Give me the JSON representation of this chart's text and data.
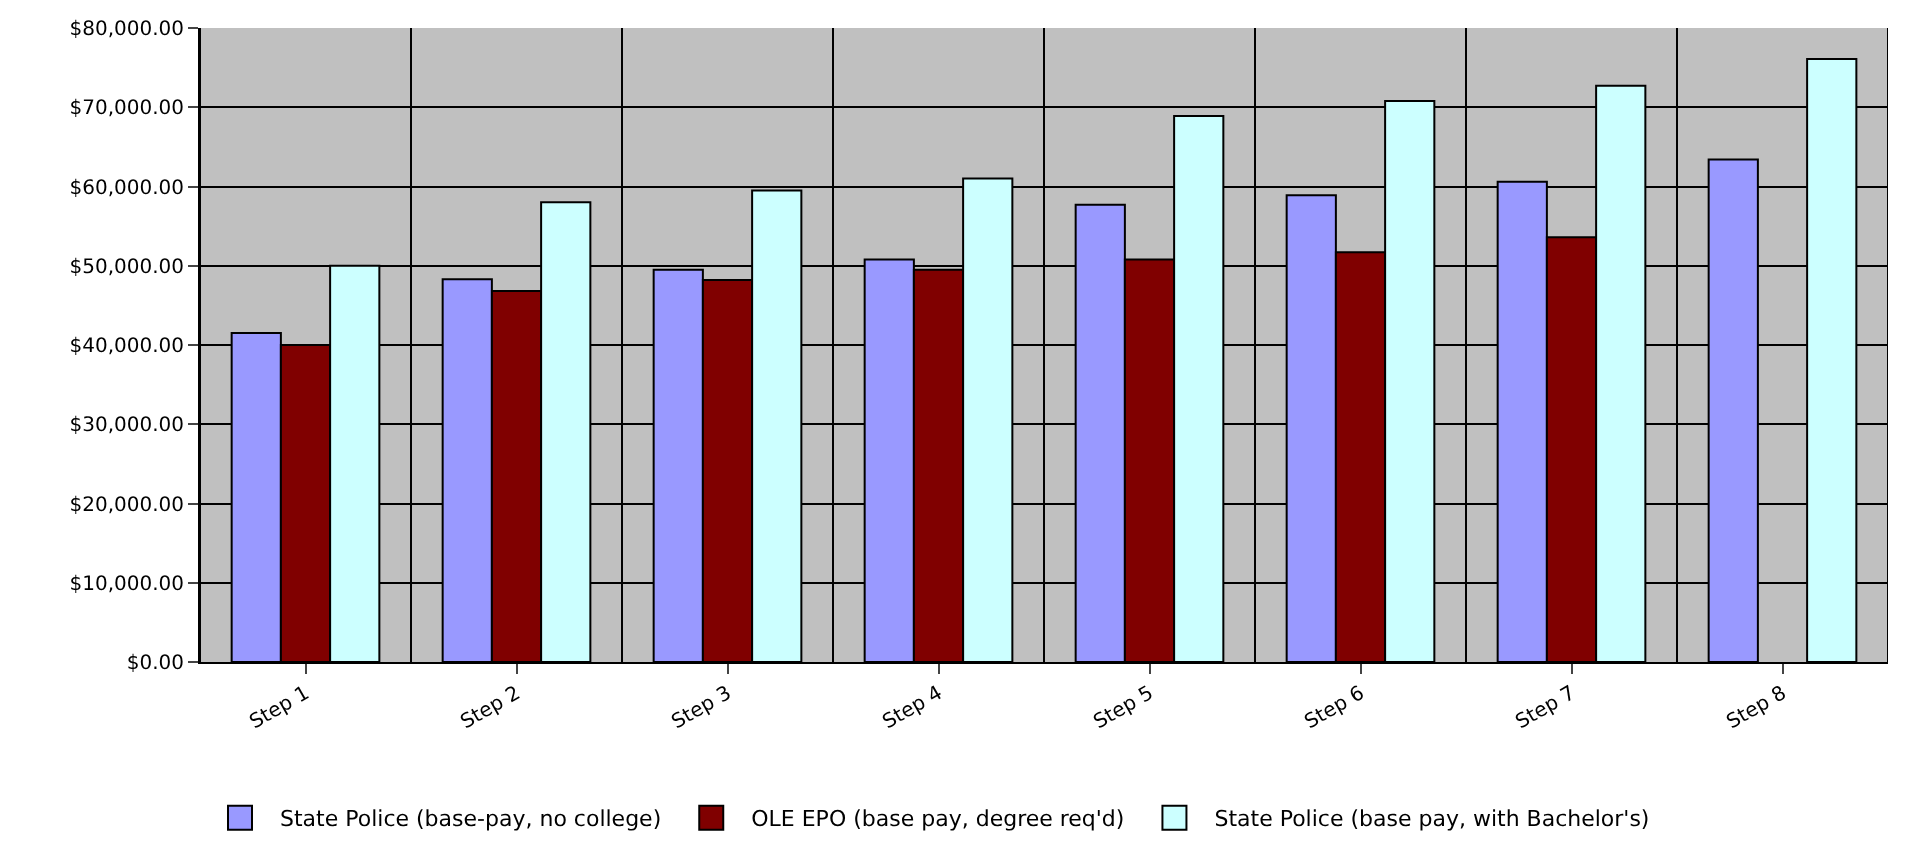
{
  "chart_data": {
    "type": "bar",
    "categories": [
      "Step 1",
      "Step 2",
      "Step 3",
      "Step 4",
      "Step 5",
      "Step 6",
      "Step 7",
      "Step 8"
    ],
    "series": [
      {
        "name": "State Police (base-pay, no college)",
        "color": "#9999ff",
        "values": [
          41500,
          48300,
          49500,
          50800,
          57700,
          58900,
          60600,
          63400
        ]
      },
      {
        "name": "OLE EPO (base pay, degree req'd)",
        "color": "#800000",
        "values": [
          40000,
          46800,
          48200,
          49500,
          50800,
          51700,
          53600,
          null
        ]
      },
      {
        "name": "State Police (base pay, with Bachelor's)",
        "color": "#ccffff",
        "values": [
          50000,
          58000,
          59500,
          61000,
          68900,
          70800,
          72700,
          76100
        ]
      }
    ],
    "ylim": [
      0,
      80000
    ],
    "yticks": [
      {
        "value": 0,
        "label": "$0.00"
      },
      {
        "value": 10000,
        "label": "$10,000.00"
      },
      {
        "value": 20000,
        "label": "$20,000.00"
      },
      {
        "value": 30000,
        "label": "$30,000.00"
      },
      {
        "value": 40000,
        "label": "$40,000.00"
      },
      {
        "value": 50000,
        "label": "$50,000.00"
      },
      {
        "value": 60000,
        "label": "$60,000.00"
      },
      {
        "value": 70000,
        "label": "$70,000.00"
      },
      {
        "value": 80000,
        "label": "$80,000.00"
      }
    ],
    "grid": true,
    "legend": "bottom"
  }
}
